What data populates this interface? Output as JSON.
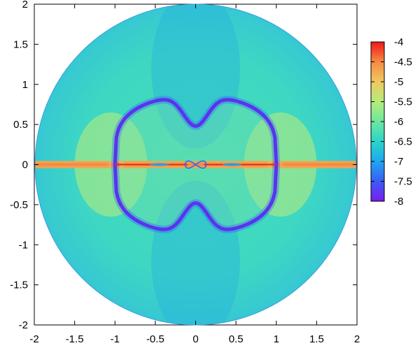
{
  "chart_data": {
    "type": "heatmap",
    "title": "",
    "xlabel": "",
    "ylabel": "",
    "xlim": [
      -2,
      2
    ],
    "ylim": [
      -2,
      2
    ],
    "x_ticks": [
      "-2",
      "-1.5",
      "-1",
      "-0.5",
      "0",
      "0.5",
      "1",
      "1.5",
      "2"
    ],
    "y_ticks": [
      "2",
      "1.5",
      "1",
      "0.5",
      "0",
      "-0.5",
      "-1",
      "-1.5",
      "-2"
    ],
    "domain_shape": "disk",
    "domain_radius": 2,
    "colorbar": {
      "min": -8,
      "max": -4,
      "ticks": [
        "-4",
        "-4.5",
        "-5",
        "-5.5",
        "-6",
        "-6.5",
        "-7",
        "-7.5",
        "-8"
      ],
      "colormap": "rainbow",
      "colors": [
        "#7a1cf0",
        "#3a5cf6",
        "#1ea6f0",
        "#2ad6c8",
        "#6ee6a0",
        "#b6ec7a",
        "#f0c860",
        "#f68a44",
        "#f01818"
      ]
    },
    "features": [
      {
        "label": "equatorial band",
        "value": -4.8
      },
      {
        "label": "hot spots at x=±1",
        "value": -4.0
      },
      {
        "label": "lobe boundary curves",
        "value": -7.9
      },
      {
        "label": "background",
        "value": -6.3
      }
    ],
    "grid": false,
    "legend": "colorbar-right"
  }
}
